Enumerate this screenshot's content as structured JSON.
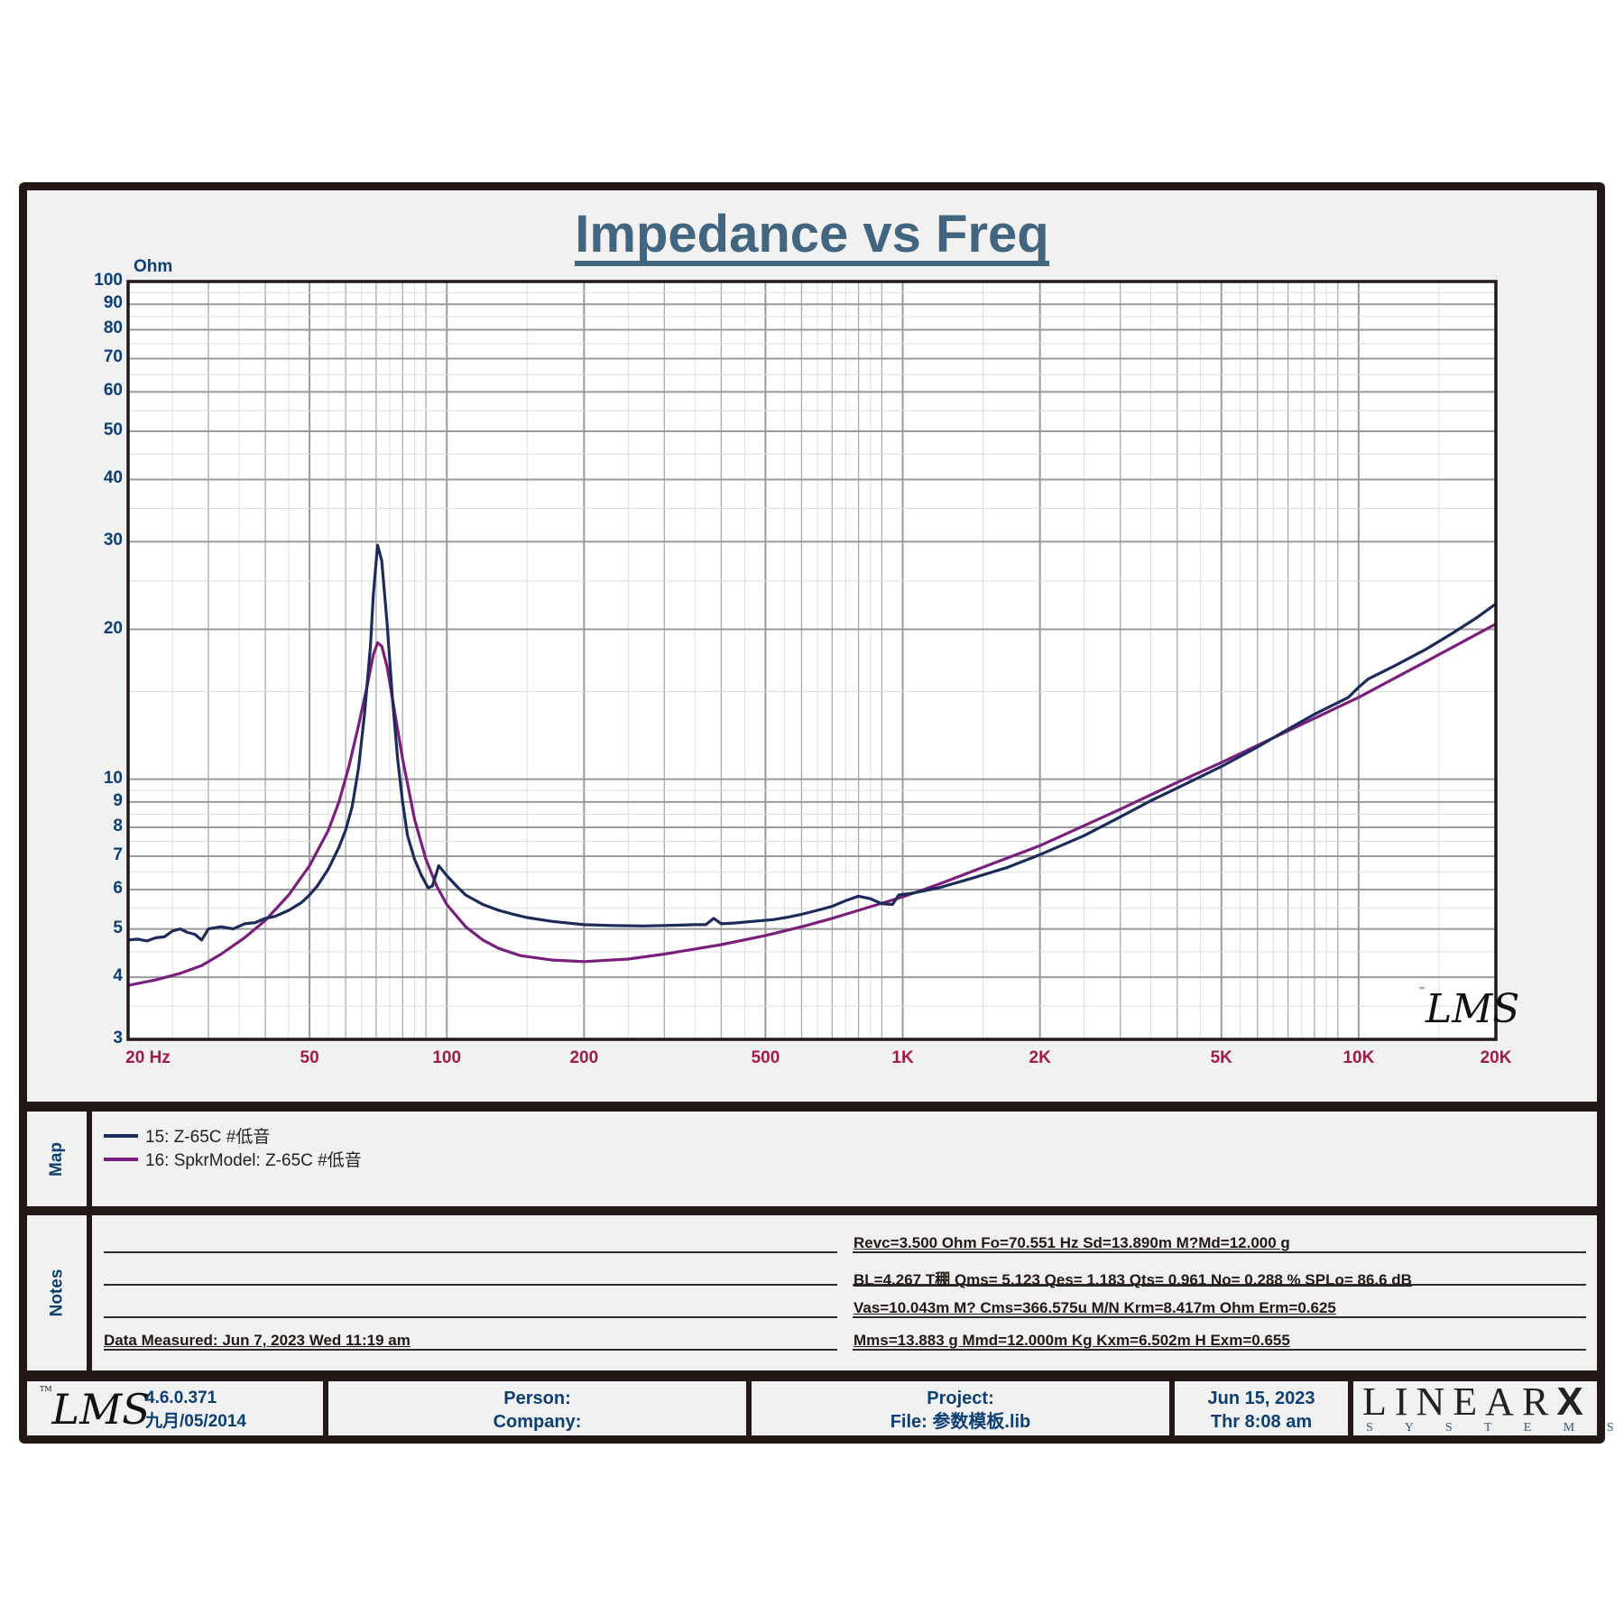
{
  "chart": {
    "title": "Impedance vs Freq",
    "y_unit": "Ohm",
    "y_ticks": [
      "100",
      "90",
      "80",
      "70",
      "60",
      "50",
      "40",
      "30",
      "20",
      "10",
      "9",
      "8",
      "7",
      "6",
      "5",
      "4",
      "3"
    ],
    "x_ticks": [
      "20  Hz",
      "50",
      "100",
      "200",
      "500",
      "1K",
      "2K",
      "5K",
      "10K",
      "20K"
    ],
    "watermark": "LMS"
  },
  "chart_data": {
    "type": "line",
    "title": "Impedance vs Freq",
    "xlabel": "Hz",
    "ylabel": "Ohm",
    "x_scale": "log",
    "y_scale": "log",
    "xlim": [
      20,
      20000
    ],
    "ylim": [
      3,
      100
    ],
    "grid": true,
    "legend_position": "below (Map panel)",
    "x_tick_values": [
      20,
      50,
      100,
      200,
      500,
      1000,
      2000,
      5000,
      10000,
      20000
    ],
    "y_tick_values": [
      3,
      4,
      5,
      6,
      7,
      8,
      9,
      10,
      20,
      30,
      40,
      50,
      60,
      70,
      80,
      90,
      100
    ],
    "series": [
      {
        "name": "15: Z-65C  #低音",
        "color": "#1c2b5a",
        "points": [
          [
            20,
            4.75
          ],
          [
            21,
            4.77
          ],
          [
            22,
            4.73
          ],
          [
            23,
            4.8
          ],
          [
            24,
            4.82
          ],
          [
            25,
            4.95
          ],
          [
            26,
            5.0
          ],
          [
            27,
            4.92
          ],
          [
            28,
            4.88
          ],
          [
            29,
            4.75
          ],
          [
            30,
            5.0
          ],
          [
            32,
            5.05
          ],
          [
            34,
            5.0
          ],
          [
            36,
            5.12
          ],
          [
            38,
            5.15
          ],
          [
            40,
            5.25
          ],
          [
            42,
            5.3
          ],
          [
            45,
            5.45
          ],
          [
            48,
            5.65
          ],
          [
            50,
            5.85
          ],
          [
            52,
            6.1
          ],
          [
            55,
            6.6
          ],
          [
            58,
            7.3
          ],
          [
            60,
            7.9
          ],
          [
            62,
            8.8
          ],
          [
            64,
            10.5
          ],
          [
            66,
            13.5
          ],
          [
            68,
            18.5
          ],
          [
            69,
            23.5
          ],
          [
            70.5,
            29.5
          ],
          [
            72,
            27.5
          ],
          [
            74,
            20.5
          ],
          [
            76,
            14.5
          ],
          [
            78,
            11.0
          ],
          [
            80,
            9.0
          ],
          [
            82,
            7.7
          ],
          [
            85,
            6.9
          ],
          [
            88,
            6.4
          ],
          [
            91,
            6.05
          ],
          [
            93,
            6.1
          ],
          [
            96,
            6.7
          ],
          [
            100,
            6.4
          ],
          [
            105,
            6.1
          ],
          [
            110,
            5.85
          ],
          [
            120,
            5.6
          ],
          [
            130,
            5.45
          ],
          [
            140,
            5.35
          ],
          [
            150,
            5.27
          ],
          [
            170,
            5.18
          ],
          [
            200,
            5.1
          ],
          [
            230,
            5.08
          ],
          [
            270,
            5.07
          ],
          [
            300,
            5.08
          ],
          [
            350,
            5.1
          ],
          [
            370,
            5.1
          ],
          [
            385,
            5.25
          ],
          [
            400,
            5.12
          ],
          [
            430,
            5.14
          ],
          [
            470,
            5.18
          ],
          [
            520,
            5.22
          ],
          [
            560,
            5.28
          ],
          [
            600,
            5.35
          ],
          [
            650,
            5.45
          ],
          [
            700,
            5.55
          ],
          [
            750,
            5.7
          ],
          [
            800,
            5.82
          ],
          [
            850,
            5.75
          ],
          [
            900,
            5.62
          ],
          [
            950,
            5.6
          ],
          [
            980,
            5.85
          ],
          [
            1050,
            5.9
          ],
          [
            1200,
            6.05
          ],
          [
            1400,
            6.3
          ],
          [
            1700,
            6.65
          ],
          [
            2000,
            7.05
          ],
          [
            2500,
            7.7
          ],
          [
            3000,
            8.4
          ],
          [
            3500,
            9.05
          ],
          [
            4000,
            9.6
          ],
          [
            5000,
            10.6
          ],
          [
            6000,
            11.6
          ],
          [
            7000,
            12.6
          ],
          [
            8000,
            13.5
          ],
          [
            9500,
            14.6
          ],
          [
            10000,
            15.3
          ],
          [
            10500,
            15.9
          ],
          [
            12000,
            16.9
          ],
          [
            14000,
            18.2
          ],
          [
            16000,
            19.6
          ],
          [
            18000,
            21.0
          ],
          [
            20000,
            22.5
          ]
        ]
      },
      {
        "name": "16: SpkrModel: Z-65C  #低音",
        "color": "#7b1f7d",
        "points": [
          [
            20,
            3.85
          ],
          [
            23,
            3.95
          ],
          [
            26,
            4.07
          ],
          [
            29,
            4.22
          ],
          [
            32,
            4.45
          ],
          [
            36,
            4.8
          ],
          [
            40,
            5.2
          ],
          [
            45,
            5.85
          ],
          [
            50,
            6.7
          ],
          [
            55,
            7.9
          ],
          [
            58,
            9.0
          ],
          [
            61,
            10.6
          ],
          [
            64,
            12.8
          ],
          [
            67,
            15.5
          ],
          [
            69,
            17.8
          ],
          [
            70.5,
            18.8
          ],
          [
            72,
            18.5
          ],
          [
            74,
            16.8
          ],
          [
            77,
            13.5
          ],
          [
            80,
            11.0
          ],
          [
            85,
            8.3
          ],
          [
            90,
            6.9
          ],
          [
            95,
            6.1
          ],
          [
            100,
            5.6
          ],
          [
            110,
            5.05
          ],
          [
            120,
            4.75
          ],
          [
            130,
            4.57
          ],
          [
            145,
            4.42
          ],
          [
            170,
            4.33
          ],
          [
            200,
            4.3
          ],
          [
            250,
            4.35
          ],
          [
            300,
            4.45
          ],
          [
            400,
            4.65
          ],
          [
            500,
            4.85
          ],
          [
            600,
            5.05
          ],
          [
            700,
            5.25
          ],
          [
            800,
            5.45
          ],
          [
            1000,
            5.8
          ],
          [
            1200,
            6.15
          ],
          [
            1500,
            6.65
          ],
          [
            2000,
            7.35
          ],
          [
            3000,
            8.7
          ],
          [
            4000,
            9.85
          ],
          [
            5000,
            10.8
          ],
          [
            7000,
            12.5
          ],
          [
            10000,
            14.6
          ],
          [
            14000,
            17.2
          ],
          [
            20000,
            20.5
          ]
        ]
      }
    ]
  },
  "map": {
    "label": "Map",
    "items": [
      {
        "label": "15: Z-65C  #低音",
        "color": "#1c2b5a"
      },
      {
        "label": "16: SpkrModel: Z-65C  #低音",
        "color": "#7b1f7d"
      }
    ]
  },
  "notes": {
    "label": "Notes",
    "left_lines": [
      "",
      "",
      "",
      "Data Measured: Jun  7, 2023  Wed 11:19 am"
    ],
    "right_lines": [
      "Revc=3.500 Ohm  Fo=70.551 Hz  Sd=13.890m M?Md=12.000 g",
      "BL=4.267 T稝  Qms= 5.123  Qes= 1.183  Qts= 0.961  No= 0.288 %  SPLo= 86.6 dB",
      "Vas=10.043m M? Cms=366.575u M/N  Krm=8.417m Ohm  Erm=0.625",
      "Mms=13.883 g  Mmd=12.000m Kg  Kxm=6.502m H  Exm=0.655"
    ]
  },
  "footer": {
    "logo": "LMS",
    "version": "4.6.0.371",
    "build_date": "九月/05/2014",
    "person_label": "Person:",
    "company_label": "Company:",
    "project_label": "Project:",
    "file_label": "File: 参数模板.lib",
    "date": "Jun 15, 2023",
    "time": "Thr  8:08 am",
    "brand_top": "LINEAR",
    "brand_x": "X",
    "brand_bottom": "S  Y  S  T  E  M  S",
    "tm": "TM"
  }
}
